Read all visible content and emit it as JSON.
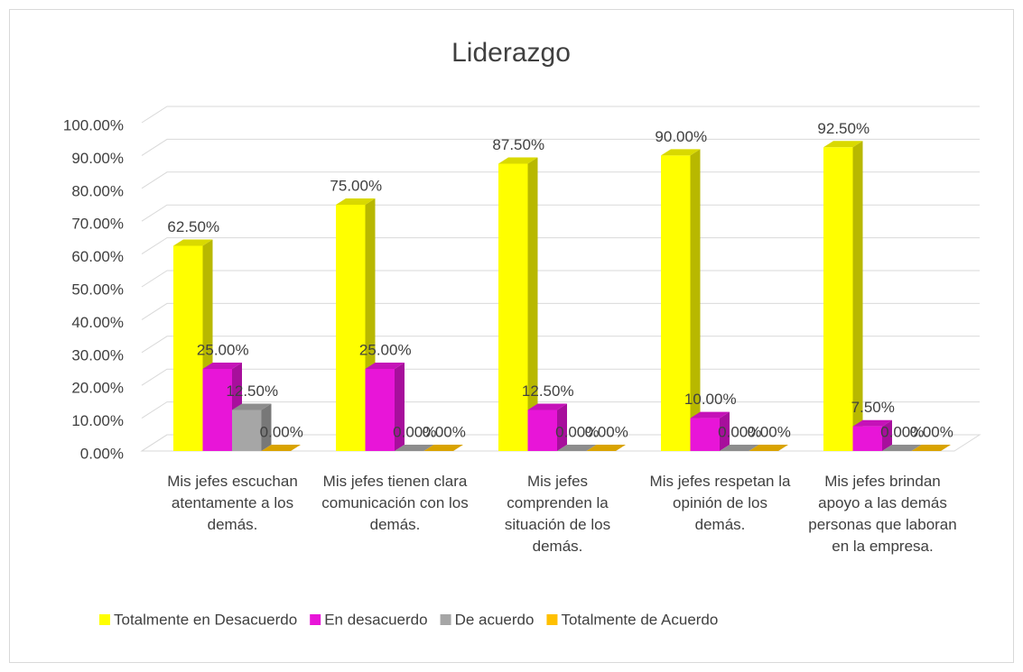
{
  "chart_data": {
    "type": "bar3d",
    "title": "Liderazgo",
    "categories": [
      "Mis jefes escuchan atentamente a los demás.",
      "Mis jefes tienen clara comunicación con los demás.",
      "Mis jefes comprenden la situación de los demás.",
      "Mis jefes respetan la opinión de los demás.",
      "Mis jefes brindan apoyo a las demás personas que laboran en la empresa."
    ],
    "series": [
      {
        "name": "Totalmente en Desacuerdo",
        "color": "#ffff00",
        "values": [
          62.5,
          75,
          87.5,
          90,
          92.5
        ],
        "value_labels": [
          "62.50%",
          "75.00%",
          "87.50%",
          "90.00%",
          "92.50%"
        ]
      },
      {
        "name": "En desacuerdo",
        "color": "#e815d8",
        "values": [
          25,
          25,
          12.5,
          10,
          7.5
        ],
        "value_labels": [
          "25.00%",
          "25.00%",
          "12.50%",
          "10.00%",
          "7.50%"
        ]
      },
      {
        "name": "De acuerdo",
        "color": "#a6a6a6",
        "values": [
          12.5,
          0,
          0,
          0,
          0
        ],
        "value_labels": [
          "12.50%",
          "0.00%",
          "0.00%",
          "0.00%",
          "0.00%"
        ]
      },
      {
        "name": "Totalmente de Acuerdo",
        "color": "#ffc000",
        "values": [
          0,
          0,
          0,
          0,
          0
        ],
        "value_labels": [
          "0.00%",
          "0.00%",
          "0.00%",
          "0.00%",
          "0.00%"
        ]
      }
    ],
    "ylim": [
      0,
      100
    ],
    "yticks": [
      {
        "value": 0,
        "label": "0.00%"
      },
      {
        "value": 10,
        "label": "10.00%"
      },
      {
        "value": 20,
        "label": "20.00%"
      },
      {
        "value": 30,
        "label": "30.00%"
      },
      {
        "value": 40,
        "label": "40.00%"
      },
      {
        "value": 50,
        "label": "50.00%"
      },
      {
        "value": 60,
        "label": "60.00%"
      },
      {
        "value": 70,
        "label": "70.00%"
      },
      {
        "value": 80,
        "label": "80.00%"
      },
      {
        "value": 90,
        "label": "90.00%"
      },
      {
        "value": 100,
        "label": "100.00%"
      }
    ],
    "grid": true,
    "legend": "bottom"
  }
}
